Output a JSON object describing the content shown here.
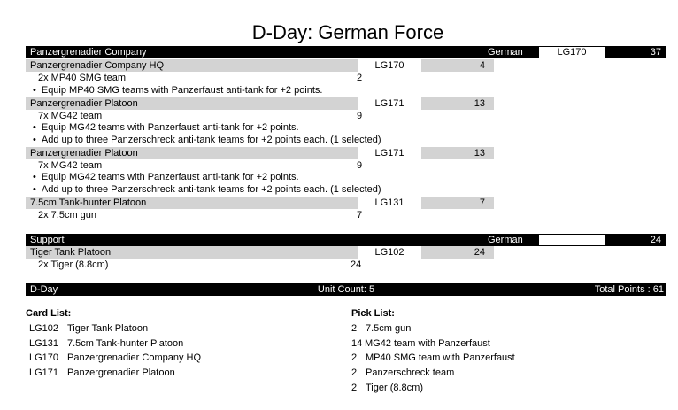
{
  "title": "D-Day: German Force",
  "sections": [
    {
      "name": "Panzergrenadier Company",
      "nation": "German",
      "card": "LG170",
      "points": "37",
      "units": [
        {
          "name": "Panzergrenadier Company HQ",
          "card": "LG170",
          "points": "4",
          "items": [
            {
              "text": "2x MP40 SMG team",
              "points": "2"
            }
          ],
          "options": [
            "Equip MP40 SMG teams with Panzerfaust anti-tank for +2 points."
          ]
        },
        {
          "name": "Panzergrenadier Platoon",
          "card": "LG171",
          "points": "13",
          "items": [
            {
              "text": "7x MG42 team",
              "points": "9"
            }
          ],
          "options": [
            "Equip MG42 teams with Panzerfaust anti-tank for +2 points.",
            "Add up to three Panzerschreck anti-tank teams for +2 points each. (1 selected)"
          ]
        },
        {
          "name": "Panzergrenadier Platoon",
          "card": "LG171",
          "points": "13",
          "items": [
            {
              "text": "7x MG42 team",
              "points": "9"
            }
          ],
          "options": [
            "Equip MG42 teams with Panzerfaust anti-tank for +2 points.",
            "Add up to three Panzerschreck anti-tank teams for +2 points each. (1 selected)"
          ]
        },
        {
          "name": "7.5cm Tank-hunter Platoon",
          "card": "LG131",
          "points": "7",
          "items": [
            {
              "text": "2x 7.5cm gun",
              "points": "7"
            }
          ],
          "options": []
        }
      ]
    },
    {
      "name": "Support",
      "nation": "German",
      "card": "",
      "points": "24",
      "units": [
        {
          "name": "Tiger Tank Platoon",
          "card": "LG102",
          "points": "24",
          "items": [
            {
              "text": "2x Tiger (8.8cm)",
              "points": "24"
            }
          ],
          "options": []
        }
      ]
    }
  ],
  "footer": {
    "name": "D-Day",
    "unit_count": "Unit Count: 5",
    "total": "Total Points : 61"
  },
  "card_list": {
    "heading": "Card List:",
    "items": [
      {
        "code": "LG102",
        "name": "Tiger Tank Platoon"
      },
      {
        "code": "LG131",
        "name": "7.5cm Tank-hunter Platoon"
      },
      {
        "code": "LG170",
        "name": "Panzergrenadier Company HQ"
      },
      {
        "code": "LG171",
        "name": "Panzergrenadier Platoon"
      }
    ]
  },
  "pick_list": {
    "heading": "Pick List:",
    "items": [
      {
        "qty": "2",
        "name": "7.5cm gun"
      },
      {
        "qty": "14",
        "name": "MG42 team with Panzerfaust"
      },
      {
        "qty": "2",
        "name": "MP40 SMG team with Panzerfaust"
      },
      {
        "qty": "2",
        "name": "Panzerschreck team"
      },
      {
        "qty": "2",
        "name": "Tiger (8.8cm)"
      }
    ]
  }
}
